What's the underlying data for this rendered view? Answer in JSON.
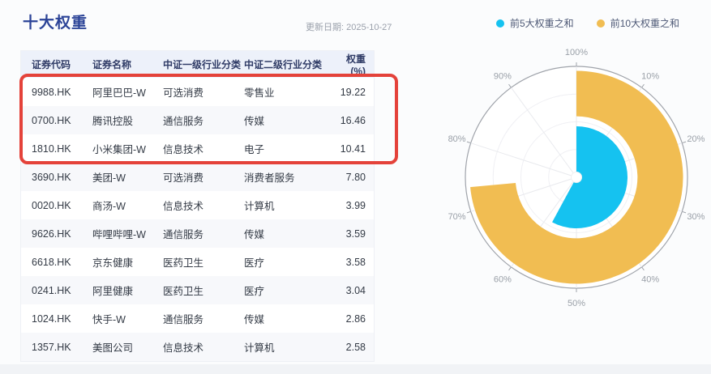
{
  "page": {
    "title": "十大权重",
    "update_label": "更新日期: 2025-10-27"
  },
  "table": {
    "columns": [
      "证券代码",
      "证券名称",
      "中证一级行业分类",
      "中证二级行业分类",
      "权重(%)"
    ],
    "rows": [
      {
        "code": "9988.HK",
        "name": "阿里巴巴-W",
        "industry_l1": "可选消费",
        "industry_l2": "零售业",
        "weight": "19.22",
        "highlighted": true
      },
      {
        "code": "0700.HK",
        "name": "腾讯控股",
        "industry_l1": "通信服务",
        "industry_l2": "传媒",
        "weight": "16.46",
        "highlighted": true
      },
      {
        "code": "1810.HK",
        "name": "小米集团-W",
        "industry_l1": "信息技术",
        "industry_l2": "电子",
        "weight": "10.41",
        "highlighted": true
      },
      {
        "code": "3690.HK",
        "name": "美团-W",
        "industry_l1": "可选消费",
        "industry_l2": "消费者服务",
        "weight": "7.80",
        "highlighted": false
      },
      {
        "code": "0020.HK",
        "name": "商汤-W",
        "industry_l1": "信息技术",
        "industry_l2": "计算机",
        "weight": "3.99",
        "highlighted": false
      },
      {
        "code": "9626.HK",
        "name": "哔哩哔哩-W",
        "industry_l1": "通信服务",
        "industry_l2": "传媒",
        "weight": "3.59",
        "highlighted": false
      },
      {
        "code": "6618.HK",
        "name": "京东健康",
        "industry_l1": "医药卫生",
        "industry_l2": "医疗",
        "weight": "3.58",
        "highlighted": false
      },
      {
        "code": "0241.HK",
        "name": "阿里健康",
        "industry_l1": "医药卫生",
        "industry_l2": "医疗",
        "weight": "3.04",
        "highlighted": false
      },
      {
        "code": "1024.HK",
        "name": "快手-W",
        "industry_l1": "通信服务",
        "industry_l2": "传媒",
        "weight": "2.86",
        "highlighted": false
      },
      {
        "code": "1357.HK",
        "name": "美图公司",
        "industry_l1": "信息技术",
        "industry_l2": "计算机",
        "weight": "2.58",
        "highlighted": false
      }
    ]
  },
  "highlight": {
    "color": "#e4423a",
    "rows_highlighted": [
      "9988.HK",
      "0700.HK",
      "1810.HK"
    ]
  },
  "legend": {
    "items": [
      {
        "label": "前5大权重之和",
        "color": "#15c2f0"
      },
      {
        "label": "前10大权重之和",
        "color": "#f1bd52"
      }
    ]
  },
  "chart_data": {
    "type": "pie",
    "variant": "polar-progress-gauge",
    "max": 100,
    "unit": "%",
    "start_angle_deg": 0,
    "direction": "clockwise",
    "axis_ticks": [
      "100%",
      "10%",
      "20%",
      "30%",
      "40%",
      "50%",
      "60%",
      "70%",
      "80%",
      "90%"
    ],
    "series": [
      {
        "name": "前5大权重之和",
        "value": 57.88,
        "color": "#15c2f0",
        "shape": "sector",
        "radius_inner_pct": 0,
        "radius_outer_pct": 46
      },
      {
        "name": "前10大权重之和",
        "value": 73.53,
        "color": "#f1bd52",
        "shape": "ring",
        "radius_inner_pct": 55,
        "radius_outer_pct": 96
      }
    ],
    "grid": {
      "spokes": true,
      "concentric_circles": true
    },
    "legend_position": "top-right",
    "colors": {
      "outline": "#9fa3aa",
      "spoke": "#e9eaee",
      "grid_circle": "#f0f0f4",
      "tick_label": "#9aa0a8"
    }
  }
}
